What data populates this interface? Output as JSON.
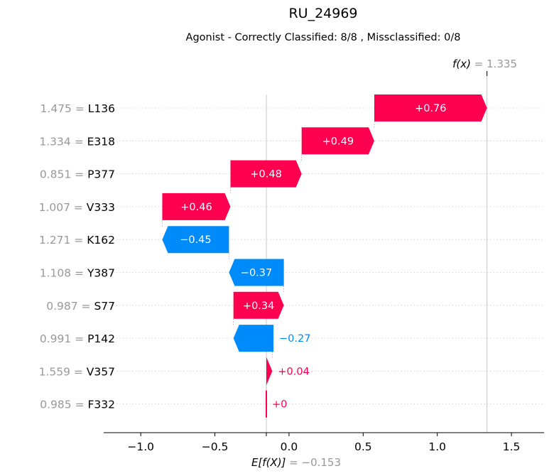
{
  "chart_data": {
    "type": "waterfall",
    "title": "RU_24969",
    "subtitle": "Agonist - Correctly Classified: 8/8 , Missclassified: 0/8",
    "base_value": -0.153,
    "base_label": "E[f(X)]",
    "base_value_text": "= −0.153",
    "final_value": 1.335,
    "final_label": "f(x)",
    "final_value_text": "= 1.335",
    "xlim": [
      -1.25,
      1.72
    ],
    "xticks": [
      -1.0,
      -0.5,
      0.0,
      0.5,
      1.0,
      1.5
    ],
    "xtick_labels": [
      "−1.0",
      "−0.5",
      "0.0",
      "0.5",
      "1.0",
      "1.5"
    ],
    "features": [
      {
        "name": "L136",
        "value": "1.475",
        "contribution": 0.76,
        "label": "+0.76",
        "start": 0.575
      },
      {
        "name": "E318",
        "value": "1.334",
        "contribution": 0.49,
        "label": "+0.49",
        "start": 0.085
      },
      {
        "name": "P377",
        "value": "0.851",
        "contribution": 0.48,
        "label": "+0.48",
        "start": -0.395
      },
      {
        "name": "V333",
        "value": "1.007",
        "contribution": 0.46,
        "label": "+0.46",
        "start": -0.855
      },
      {
        "name": "K162",
        "value": "1.271",
        "contribution": -0.45,
        "label": "−0.45",
        "start": -0.405
      },
      {
        "name": "Y387",
        "value": "1.108",
        "contribution": -0.37,
        "label": "−0.37",
        "start": -0.035
      },
      {
        "name": "S77",
        "value": "0.987",
        "contribution": 0.34,
        "label": "+0.34",
        "start": -0.375
      },
      {
        "name": "P142",
        "value": "0.991",
        "contribution": -0.27,
        "label": "−0.27",
        "start": -0.105
      },
      {
        "name": "V357",
        "value": "1.559",
        "contribution": 0.04,
        "label": "+0.04",
        "start": -0.153
      },
      {
        "name": "F332",
        "value": "0.985",
        "contribution": 0.0,
        "label": "+0",
        "start": -0.153
      }
    ],
    "colors": {
      "positive": "#ff0051",
      "negative": "#008bfb",
      "muted": "#999999"
    }
  }
}
